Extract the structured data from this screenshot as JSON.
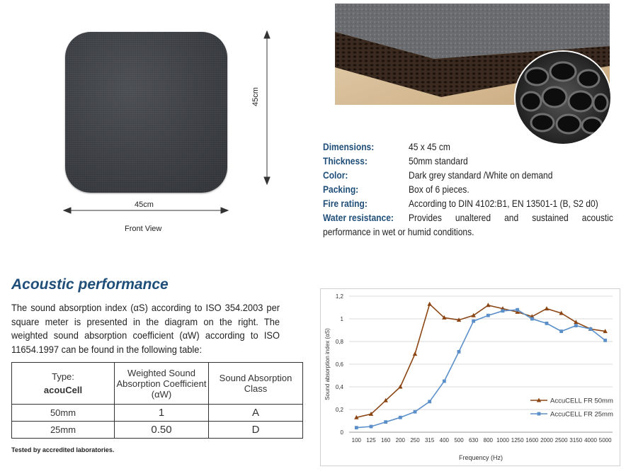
{
  "front_view": {
    "width_label": "45cm",
    "height_label": "45cm",
    "caption": "Front View"
  },
  "specs": [
    {
      "label": "Dimensions:",
      "value": "45 x 45 cm"
    },
    {
      "label": "Thickness:",
      "value": "50mm standard"
    },
    {
      "label": "Color:",
      "value": "Dark grey standard /White on demand"
    },
    {
      "label": "Packing:",
      "value": "Box of 6 pieces."
    },
    {
      "label": "Fire rating:",
      "value": "According to DIN 4102:B1, EN 13501-1 (B, S2 d0)"
    },
    {
      "label": "Water resistance:",
      "value": "Provides unaltered and sustained acoustic",
      "value_cont": "performance in wet or humid conditions."
    }
  ],
  "acoustic": {
    "title": "Acoustic performance",
    "body": "The sound absorption index (αS) according to ISO 354.2003 per square meter is presented in the diagram on the right. The weighted sound absorption coefficient (αW) according to ISO 11654.1997 can be found in the following table:",
    "table": {
      "headers": [
        "Type:",
        "Weighted Sound Absorption Coefficient (αW)",
        "Sound Absorption Class"
      ],
      "brand": "acouCell",
      "rows": [
        [
          "50mm",
          "1",
          "A"
        ],
        [
          "25mm",
          "0.50",
          "D"
        ]
      ]
    },
    "footnote": "Tested by accredited laboratories."
  },
  "chart_data": {
    "type": "line",
    "title": "",
    "xlabel": "Frequency (Hz)",
    "ylabel": "Sound absorption index (αS)",
    "categories": [
      "100",
      "125",
      "160",
      "200",
      "250",
      "315",
      "400",
      "500",
      "630",
      "800",
      "1000",
      "1250",
      "1600",
      "2000",
      "2500",
      "3150",
      "4000",
      "5000"
    ],
    "ylim": [
      0,
      1.2
    ],
    "yticks": [
      "0",
      "0,2",
      "0,4",
      "0,6",
      "0,8",
      "1",
      "1,2"
    ],
    "grid": true,
    "legend": "bottom-right",
    "series": [
      {
        "name": "AccuCELL FR 50mm",
        "color": "#8b4513",
        "marker": "triangle",
        "values": [
          0.13,
          0.16,
          0.28,
          0.4,
          0.69,
          1.13,
          1.01,
          0.99,
          1.03,
          1.12,
          1.09,
          1.06,
          1.02,
          1.09,
          1.05,
          0.97,
          0.91,
          0.89
        ]
      },
      {
        "name": "AccuCELL FR 25mm",
        "color": "#5b8fc9",
        "marker": "square",
        "values": [
          0.04,
          0.05,
          0.09,
          0.13,
          0.18,
          0.27,
          0.45,
          0.71,
          0.98,
          1.03,
          1.07,
          1.08,
          1.0,
          0.96,
          0.89,
          0.94,
          0.91,
          0.81
        ]
      }
    ]
  },
  "colors": {
    "heading": "#1f4e79",
    "series50": "#8b4513",
    "series25": "#5b8fc9"
  }
}
